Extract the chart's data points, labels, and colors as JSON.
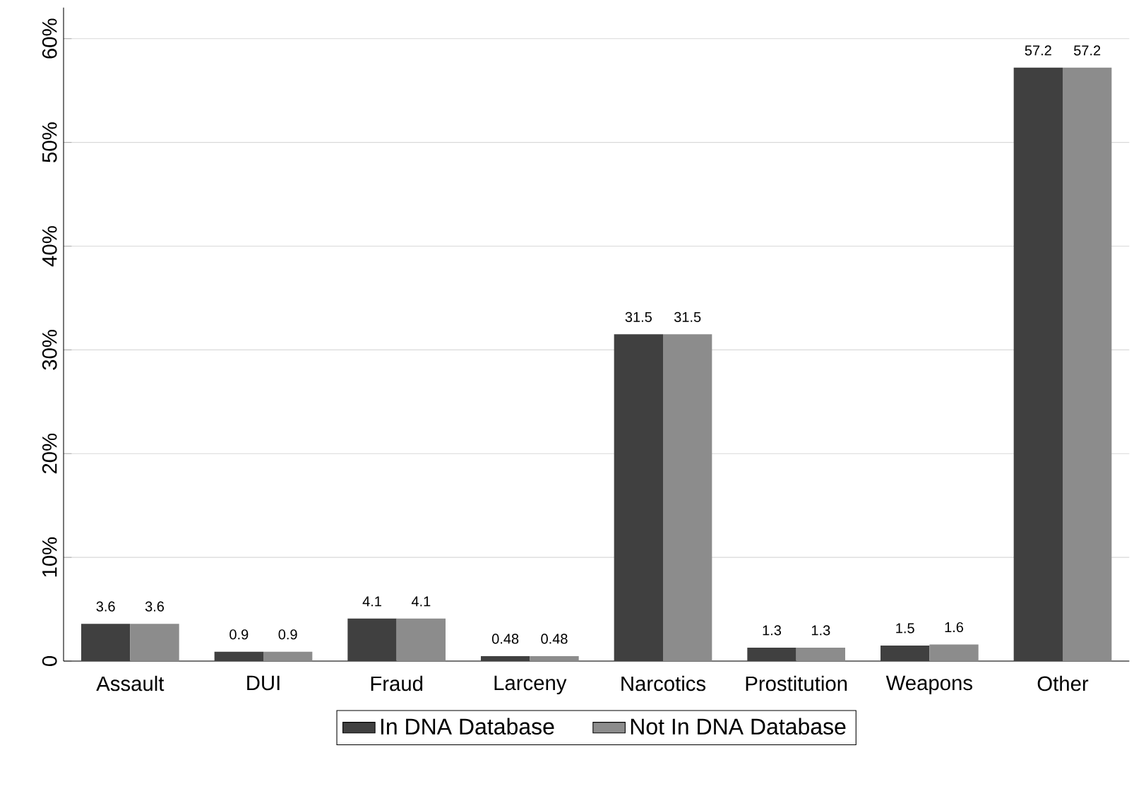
{
  "chart_data": {
    "type": "bar",
    "categories": [
      "Assault",
      "DUI",
      "Fraud",
      "Larceny",
      "Narcotics",
      "Prostitution",
      "Weapons",
      "Other"
    ],
    "series": [
      {
        "name": "In DNA Database",
        "color": "#404040",
        "values": [
          3.6,
          0.9,
          4.1,
          0.48,
          31.5,
          1.3,
          1.5,
          57.2
        ]
      },
      {
        "name": "Not In DNA Database",
        "color": "#8c8c8c",
        "values": [
          3.6,
          0.9,
          4.1,
          0.48,
          31.5,
          1.3,
          1.6,
          57.2
        ]
      }
    ],
    "ylim": [
      0,
      63
    ],
    "yticks": [
      {
        "value": 0,
        "label": "0"
      },
      {
        "value": 10,
        "label": "10%"
      },
      {
        "value": 20,
        "label": "20%"
      },
      {
        "value": 30,
        "label": "30%"
      },
      {
        "value": 40,
        "label": "40%"
      },
      {
        "value": 50,
        "label": "50%"
      },
      {
        "value": 60,
        "label": "60%"
      }
    ],
    "grid": "y",
    "legend": "bottom",
    "data_labels": true
  }
}
